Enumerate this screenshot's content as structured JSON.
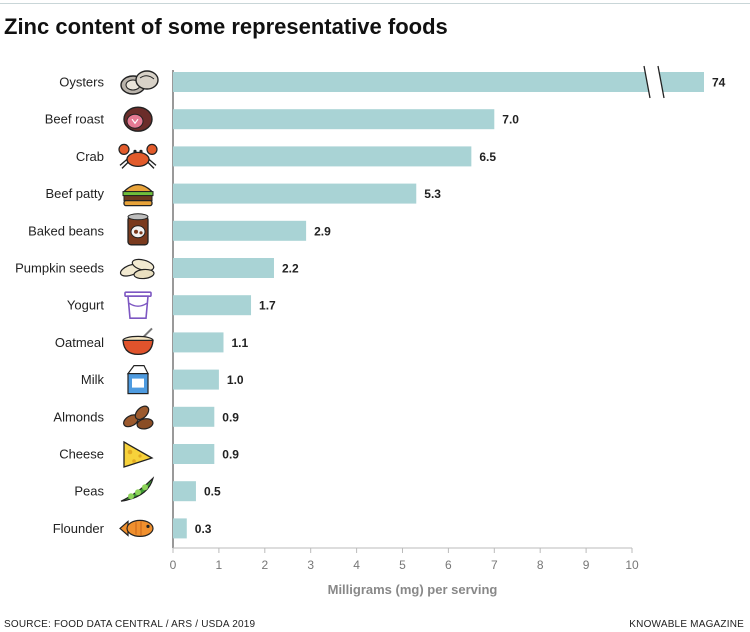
{
  "header": {
    "title": "Zinc content of some representative foods"
  },
  "footer": {
    "source": "SOURCE: FOOD DATA CENTRAL / ARS / USDA 2019",
    "brand": "KNOWABLE MAGAZINE"
  },
  "colors": {
    "bar": "#a9d3d5",
    "axis": "#333333"
  },
  "chart_data": {
    "type": "bar",
    "orientation": "horizontal",
    "title": "Zinc content of some representative foods",
    "xlabel": "Milligrams (mg) per serving",
    "ylabel": "",
    "xlim": [
      0,
      10
    ],
    "x_ticks": [
      "0",
      "1",
      "2",
      "3",
      "4",
      "5",
      "6",
      "7",
      "8",
      "9",
      "10"
    ],
    "grid": false,
    "axis_break": "Oysters bar is broken (value exceeds axis range)",
    "categories": [
      "Oysters",
      "Beef roast",
      "Crab",
      "Beef patty",
      "Baked beans",
      "Pumpkin seeds",
      "Yogurt",
      "Oatmeal",
      "Milk",
      "Almonds",
      "Cheese",
      "Peas",
      "Flounder"
    ],
    "values": [
      74,
      7.0,
      6.5,
      5.3,
      2.9,
      2.2,
      1.7,
      1.1,
      1.0,
      0.9,
      0.9,
      0.5,
      0.3
    ],
    "value_labels": [
      "74",
      "7.0",
      "6.5",
      "5.3",
      "2.9",
      "2.2",
      "1.7",
      "1.1",
      "1.0",
      "0.9",
      "0.9",
      "0.5",
      "0.3"
    ],
    "icons": [
      "oyster-icon",
      "beef-roast-icon",
      "crab-icon",
      "burger-icon",
      "baked-beans-can-icon",
      "pumpkin-seeds-icon",
      "yogurt-cup-icon",
      "oatmeal-bowl-icon",
      "milk-carton-icon",
      "almonds-icon",
      "cheese-icon",
      "peas-pod-icon",
      "fish-icon"
    ]
  }
}
